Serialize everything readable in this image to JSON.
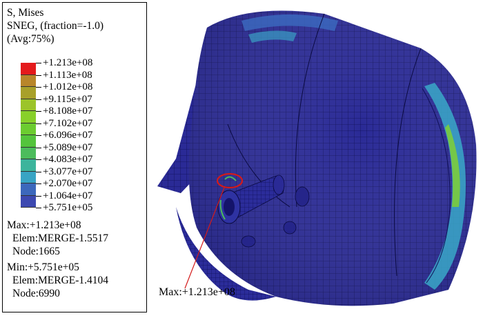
{
  "legend": {
    "title_line1": "S, Mises",
    "title_line2": "SNEG, (fraction=-1.0)",
    "title_line3": "(Avg:75%)",
    "ticks": [
      "+1.213e+08",
      "+1.113e+08",
      "+1.012e+08",
      "+9.115e+07",
      "+8.108e+07",
      "+7.102e+07",
      "+6.096e+07",
      "+5.089e+07",
      "+4.083e+07",
      "+3.077e+07",
      "+2.070e+07",
      "+1.064e+07",
      "+5.751e+05"
    ],
    "band_colors": [
      "#e41a1c",
      "#b8862a",
      "#a8a02a",
      "#9cc42a",
      "#88d02a",
      "#6ccc30",
      "#54c43c",
      "#4cbc5c",
      "#3cb49c",
      "#38a4c4",
      "#3c68bc",
      "#3c48b0"
    ],
    "max_line1": "Max:+1.213e+08",
    "max_line2": "Elem:MERGE-1.5517",
    "max_line3": "Node:1665",
    "min_line1": "Min:+5.751e+05",
    "min_line2": "Elem:MERGE-1.4104",
    "min_line3": "Node:6990"
  },
  "annotation": {
    "label": "Max:+1.213e+08",
    "color": "#d41a1a"
  }
}
